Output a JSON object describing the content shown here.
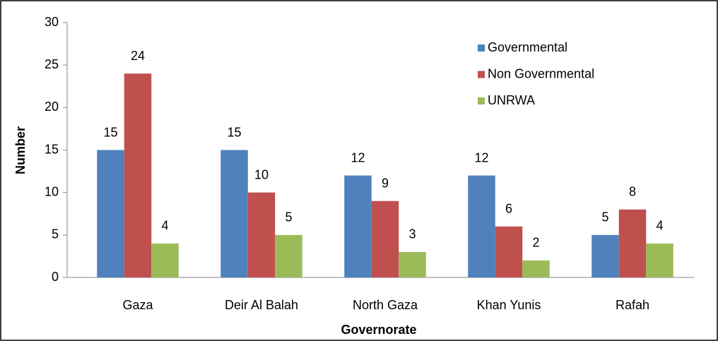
{
  "chart_data": {
    "type": "bar",
    "x_label": "Governorate",
    "y_label": "Number",
    "categories": [
      "Gaza",
      "Deir Al Balah",
      "North Gaza",
      "Khan Yunis",
      "Rafah"
    ],
    "series": [
      {
        "name": "Governmental",
        "color": "#4f81bd",
        "values": [
          15,
          15,
          12,
          12,
          5
        ]
      },
      {
        "name": "Non Governmental",
        "color": "#c0504d",
        "values": [
          24,
          10,
          9,
          6,
          8
        ]
      },
      {
        "name": "UNRWA",
        "color": "#9bbb59",
        "values": [
          4,
          5,
          3,
          2,
          4
        ]
      }
    ],
    "ylim": [
      0,
      30
    ],
    "yticks": [
      0,
      5,
      10,
      15,
      20,
      25,
      30
    ],
    "grid": false,
    "legend": "top-right"
  }
}
